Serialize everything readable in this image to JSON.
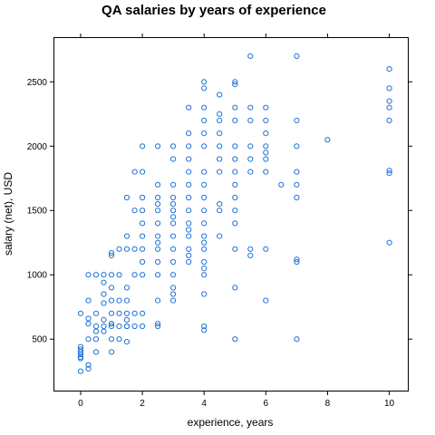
{
  "chart_data": {
    "type": "scatter",
    "title": "QA salaries by years of experience",
    "xlabel": "experience, years",
    "ylabel": "salary (net), USD",
    "xlim": [
      -0.85,
      10.6
    ],
    "ylim": [
      100,
      2840
    ],
    "xticks": [
      0,
      2,
      4,
      6,
      8,
      10
    ],
    "yticks": [
      500,
      1000,
      1500,
      2000,
      2500
    ],
    "grid": false,
    "point_color": "#1f73d6",
    "x": [
      0,
      0,
      0,
      0,
      0,
      0,
      0,
      0,
      0.25,
      0.25,
      0.25,
      0.25,
      0.25,
      0.25,
      0.25,
      0.5,
      0.5,
      0.5,
      0.5,
      0.5,
      0.5,
      0.75,
      0.75,
      0.75,
      0.75,
      0.75,
      0.75,
      0.75,
      1,
      1,
      1,
      1,
      1,
      1,
      1,
      1,
      1,
      1,
      1,
      1.25,
      1.25,
      1.25,
      1.25,
      1.25,
      1.25,
      1.5,
      1.5,
      1.5,
      1.5,
      1.5,
      1.5,
      1.5,
      1.5,
      1.5,
      1.5,
      1.75,
      1.75,
      1.75,
      1.75,
      1.75,
      1.75,
      2,
      2,
      2,
      2,
      2,
      2,
      2,
      2,
      2,
      2,
      2,
      2.5,
      2.5,
      2.5,
      2.5,
      2.5,
      2.5,
      2.5,
      2.5,
      2.5,
      2.5,
      2.5,
      2.5,
      2.5,
      2.5,
      3,
      3,
      3,
      3,
      3,
      3,
      3,
      3,
      3,
      3,
      3,
      3,
      3,
      3,
      3,
      3.5,
      3.5,
      3.5,
      3.5,
      3.5,
      3.5,
      3.5,
      3.5,
      3.5,
      3.5,
      3.5,
      3.5,
      3.5,
      3.5,
      4,
      4,
      4,
      4,
      4,
      4,
      4,
      4,
      4,
      4,
      4,
      4,
      4,
      4,
      4,
      4,
      4,
      4,
      4,
      4,
      4.5,
      4.5,
      4.5,
      4.5,
      4.5,
      4.5,
      4.5,
      4.5,
      4.5,
      4.5,
      5,
      5,
      5,
      5,
      5,
      5,
      5,
      5,
      5,
      5,
      5,
      5,
      5,
      5,
      5.5,
      5.5,
      5.5,
      5.5,
      5.5,
      5.5,
      5.5,
      5.5,
      6,
      6,
      6,
      6,
      6,
      6,
      6,
      6,
      6,
      6.5,
      7,
      7,
      7,
      7,
      7,
      7,
      7,
      7,
      7,
      8,
      10,
      10,
      10,
      10,
      10,
      10,
      10,
      10
    ],
    "y": [
      250,
      350,
      400,
      440,
      700,
      380,
      420,
      360,
      270,
      300,
      500,
      620,
      660,
      800,
      1000,
      400,
      500,
      560,
      600,
      700,
      1000,
      560,
      600,
      650,
      780,
      850,
      940,
      1000,
      400,
      500,
      600,
      620,
      700,
      800,
      900,
      1000,
      1150,
      1170,
      620,
      500,
      600,
      700,
      800,
      1000,
      1200,
      480,
      600,
      650,
      700,
      800,
      900,
      1200,
      1300,
      1600,
      600,
      600,
      700,
      1000,
      1200,
      1500,
      1800,
      600,
      700,
      1000,
      1100,
      1200,
      1300,
      1400,
      1500,
      1800,
      2000,
      1600,
      600,
      620,
      800,
      1000,
      1100,
      1200,
      1250,
      1300,
      1400,
      1500,
      1550,
      1600,
      1700,
      2000,
      800,
      850,
      900,
      1000,
      1100,
      1200,
      1300,
      1400,
      1450,
      1500,
      1550,
      1600,
      1700,
      1900,
      2000,
      1100,
      1150,
      1200,
      1300,
      1400,
      1500,
      1600,
      1700,
      1800,
      1900,
      2000,
      2100,
      2300,
      1350,
      570,
      600,
      850,
      1000,
      1050,
      1100,
      1200,
      1250,
      1300,
      1400,
      1500,
      1600,
      1700,
      1800,
      2000,
      2100,
      2200,
      2300,
      2450,
      2500,
      1300,
      1550,
      1800,
      1900,
      2000,
      2100,
      2200,
      2250,
      2400,
      1500,
      500,
      900,
      1200,
      1400,
      1500,
      1600,
      1700,
      1800,
      1900,
      2000,
      2200,
      2300,
      2480,
      2500,
      1150,
      1200,
      1800,
      2000,
      2200,
      2300,
      2700,
      1900,
      800,
      1200,
      1800,
      1900,
      2000,
      2200,
      2300,
      1950,
      2100,
      1700,
      500,
      1100,
      1120,
      1600,
      1700,
      1800,
      2000,
      2200,
      2700,
      2050,
      1250,
      1790,
      1810,
      2200,
      2300,
      2350,
      2450,
      2600
    ]
  }
}
